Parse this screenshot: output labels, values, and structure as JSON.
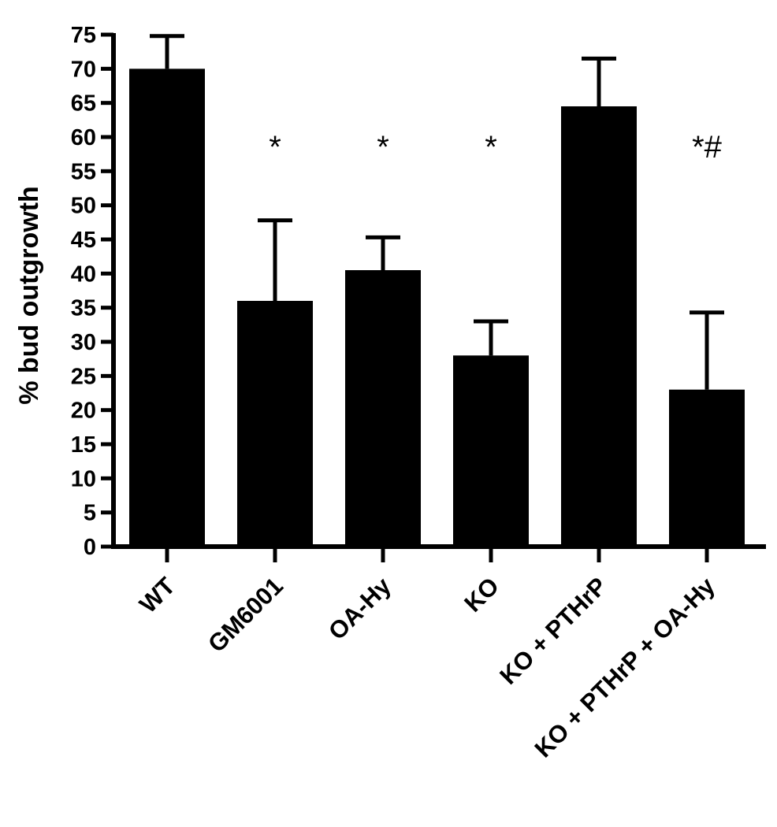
{
  "chart_data": {
    "type": "bar",
    "title": "",
    "xlabel": "",
    "ylabel": "% bud outgrowth",
    "ylim": [
      0,
      75
    ],
    "yticks": [
      0,
      5,
      10,
      15,
      20,
      25,
      30,
      35,
      40,
      45,
      50,
      55,
      60,
      65,
      70,
      75
    ],
    "grid": false,
    "categories": [
      "WT",
      "GM6001",
      "OA-Hy",
      "KO",
      "KO + PTHrP",
      "KO + PTHrP + OA-Hy"
    ],
    "values": [
      70,
      36,
      40.5,
      28,
      64.5,
      23
    ],
    "error_upper": [
      4.8,
      11.8,
      4.8,
      5,
      7,
      11.3
    ],
    "annotations": [
      "",
      "*",
      "*",
      "*",
      "",
      "*#"
    ],
    "bar_color": "#000000"
  }
}
